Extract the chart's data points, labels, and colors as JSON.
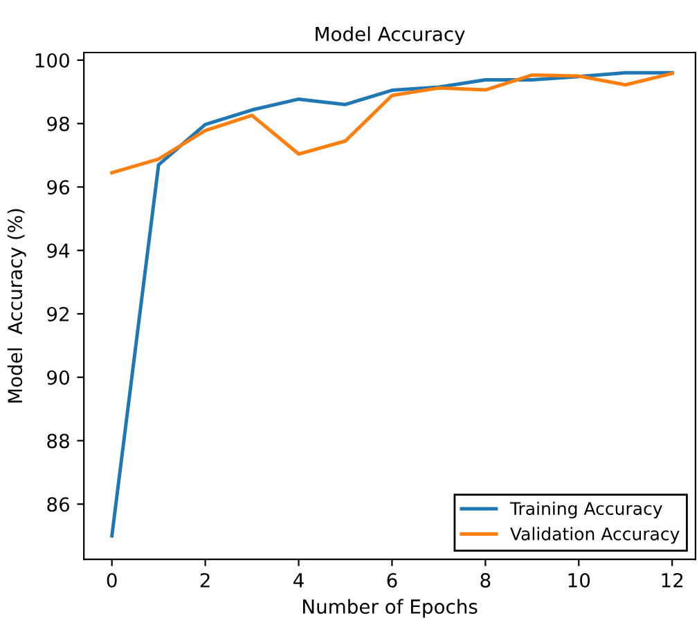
{
  "chart_data": {
    "type": "line",
    "title": "Model Accuracy",
    "xlabel": "Number of Epochs",
    "ylabel": "Model  Accuracy (%)",
    "x": [
      0,
      1,
      2,
      3,
      4,
      5,
      6,
      7,
      8,
      9,
      10,
      11,
      12
    ],
    "series": [
      {
        "name": "Training Accuracy",
        "color": "#1f77b4",
        "values": [
          85.0,
          96.7,
          97.97,
          98.43,
          98.77,
          98.6,
          99.05,
          99.15,
          99.38,
          99.38,
          99.48,
          99.6,
          99.6
        ]
      },
      {
        "name": "Validation Accuracy",
        "color": "#ff7f0e",
        "values": [
          96.45,
          96.88,
          97.78,
          98.26,
          97.04,
          97.45,
          98.89,
          99.12,
          99.06,
          99.53,
          99.5,
          99.22,
          99.58
        ]
      }
    ],
    "xlim": [
      -0.6,
      12.5
    ],
    "ylim": [
      84.26,
      100.24
    ],
    "xticks": [
      0,
      2,
      4,
      6,
      8,
      10,
      12
    ],
    "yticks": [
      86,
      88,
      90,
      92,
      94,
      96,
      98,
      100
    ],
    "grid": false,
    "legend": "lower right",
    "marker": "none",
    "line_style": "solid"
  }
}
